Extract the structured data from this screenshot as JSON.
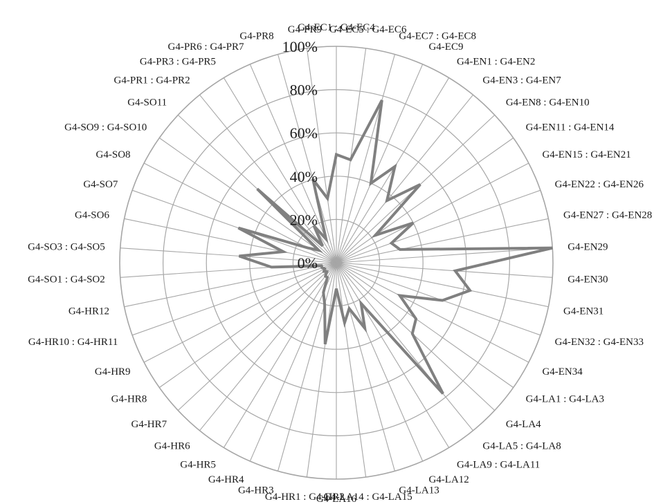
{
  "chart_data": {
    "type": "radar",
    "title": "",
    "rlim": [
      0,
      100
    ],
    "ticks": [
      "0%",
      "20%",
      "40%",
      "60%",
      "80%",
      "100%"
    ],
    "grid": true,
    "legend": "none",
    "colors": {
      "series": "#808080",
      "grid": "#a6a6a6",
      "text": "#1a1a1a"
    },
    "categories": [
      "G4-EC1 : G4-EC4",
      "G4-EC5 : G4-EC6",
      "G4-EC7 : G4-EC8",
      "G4-EC9",
      "G4-EN1 : G4-EN2",
      "G4-EN3 : G4-EN7",
      "G4-EN8 : G4-EN10",
      "G4-EN11 : G4-EN14",
      "G4-EN15 : G4-EN21",
      "G4-EN22 : G4-EN26",
      "G4-EN27 : G4-EN28",
      "G4-EN29",
      "G4-EN30",
      "G4-EN31",
      "G4-EN32 : G4-EN33",
      "G4-EN34",
      "G4-LA1 : G4-LA3",
      "G4-LA4",
      "G4-LA5 : G4-LA8",
      "G4-LA9 : G4-LA11",
      "G4-LA12",
      "G4-LA13",
      "G4-LA14 : G4-LA15",
      "G4-LA16",
      "G4-HR1 : G4-HR2",
      "G4-HR3",
      "G4-HR4",
      "G4-HR5",
      "G4-HR6",
      "G4-HR7",
      "G4-HR8",
      "G4-HR9",
      "G4-HR10 : G4-HR11",
      "G4-HR12",
      "G4-SO1 : G4-SO2",
      "G4-SO3 : G4-SO5",
      "G4-SO6",
      "G4-SO7",
      "G4-SO8",
      "G4-SO9 : G4-SO10",
      "G4-SO11",
      "G4-PR1 : G4-PR2",
      "G4-PR3 : G4-PR5",
      "G4-PR6 : G4-PR7",
      "G4-PR8",
      "G4-PR9"
    ],
    "series": [
      {
        "values": [
          50,
          48,
          78,
          40,
          52,
          37,
          53,
          22,
          40,
          27,
          30,
          100,
          55,
          63,
          52,
          33,
          45,
          48,
          78,
          22,
          33,
          22,
          28,
          12,
          38,
          20,
          15,
          8,
          8,
          6,
          7,
          6,
          7,
          7,
          30,
          45,
          25,
          48,
          15,
          10,
          50,
          10,
          20,
          12,
          40,
          30
        ]
      }
    ]
  }
}
